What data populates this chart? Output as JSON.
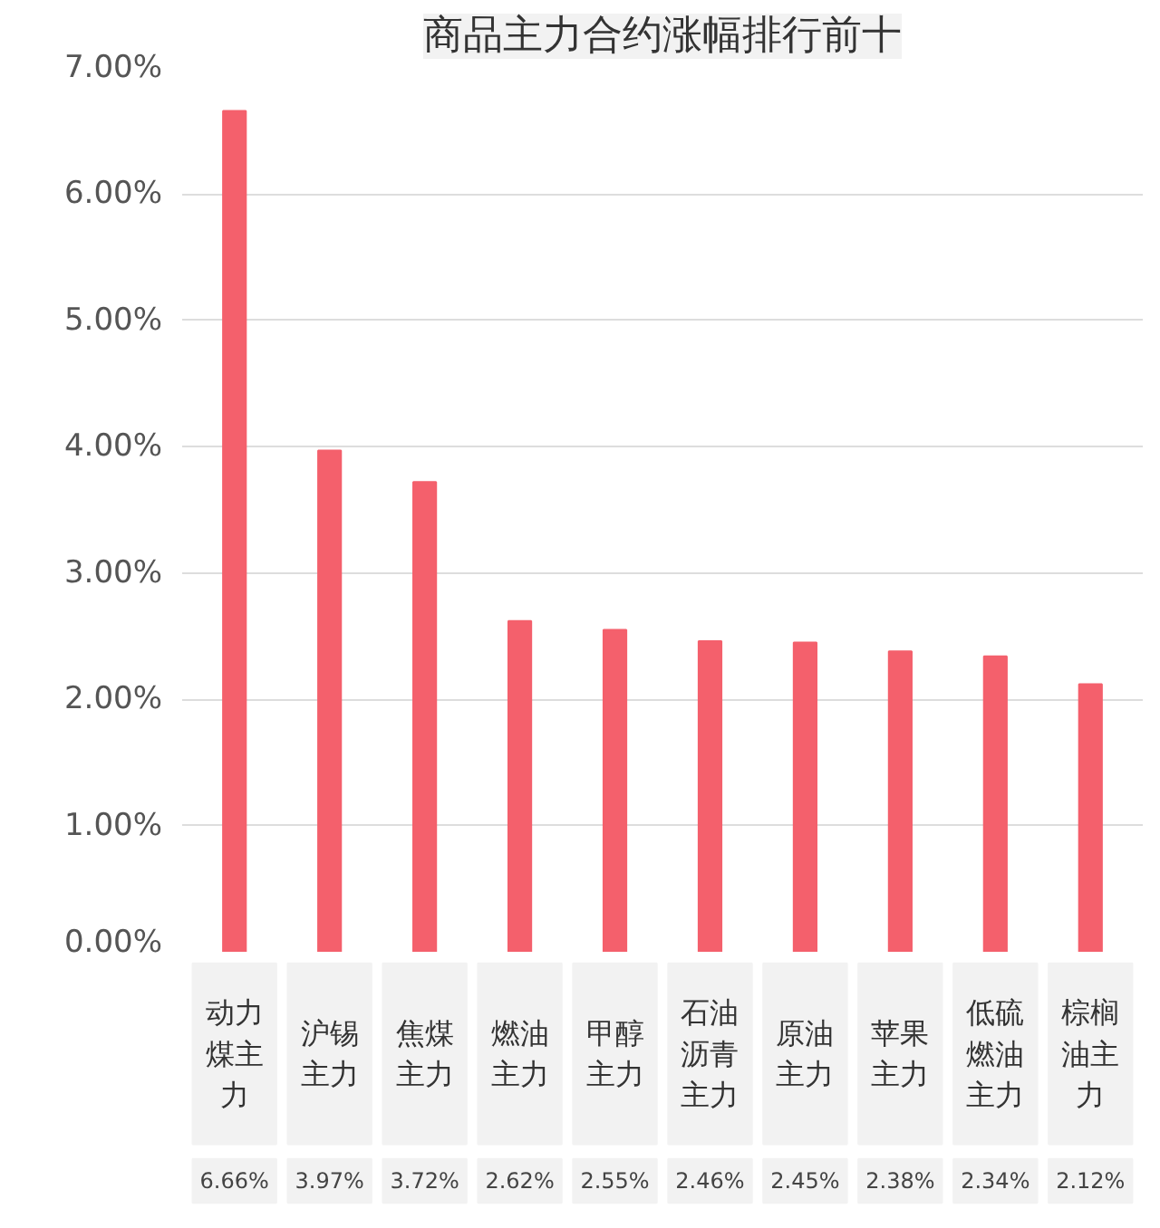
{
  "chart_data": {
    "type": "bar",
    "title": "商品主力合约涨幅排行前十",
    "categories": [
      "动力煤主力",
      "沪锡主力",
      "焦煤主力",
      "燃油主力",
      "甲醇主力",
      "石油沥青主力",
      "原油主力",
      "苹果主力",
      "低硫燃油主力",
      "棕榈油主力"
    ],
    "values": [
      6.66,
      3.97,
      3.72,
      2.62,
      2.55,
      2.46,
      2.45,
      2.38,
      2.34,
      2.12
    ],
    "value_labels": [
      "6.66%",
      "3.97%",
      "3.72%",
      "2.62%",
      "2.55%",
      "2.46%",
      "2.45%",
      "2.38%",
      "2.34%",
      "2.12%"
    ],
    "color": "#f4606c",
    "ylim": [
      0,
      7
    ],
    "yticks": [
      {
        "value": 0,
        "label": "0.00%"
      },
      {
        "value": 1,
        "label": "1.00%"
      },
      {
        "value": 2,
        "label": "2.00%"
      },
      {
        "value": 3,
        "label": "3.00%"
      },
      {
        "value": 4,
        "label": "4.00%"
      },
      {
        "value": 5,
        "label": "5.00%"
      },
      {
        "value": 6,
        "label": "6.00%"
      },
      {
        "value": 7,
        "label": "7.00%"
      }
    ],
    "grid": "y"
  }
}
